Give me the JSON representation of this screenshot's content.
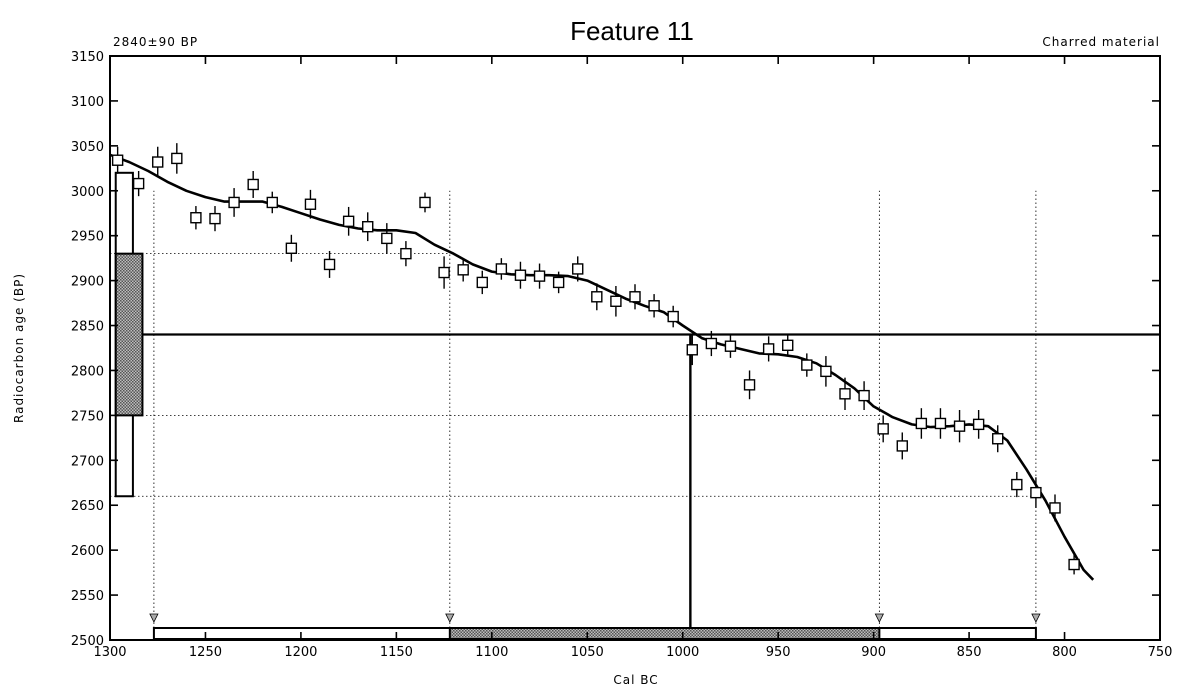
{
  "chart_data": {
    "type": "scatter",
    "title": "Feature 11",
    "sample_label": "2840±90 BP",
    "material_label": "Charred material",
    "xlabel": "Cal BC",
    "ylabel": "Radiocarbon age (BP)",
    "x_reversed": true,
    "xlim": [
      1300,
      750
    ],
    "ylim": [
      2500,
      3150
    ],
    "x_ticks": [
      "1300",
      "1250",
      "1200",
      "1150",
      "1100",
      "1050",
      "1000",
      "950",
      "900",
      "850",
      "800",
      "750"
    ],
    "y_ticks": [
      "2500",
      "2550",
      "2600",
      "2650",
      "2700",
      "2750",
      "2800",
      "2850",
      "2900",
      "2950",
      "3000",
      "3050",
      "3100",
      "3150"
    ],
    "sample_age_bp": 2840,
    "sample_error_bp": 90,
    "one_sigma_age_range_bp": [
      2750,
      2930
    ],
    "two_sigma_age_range_bp": [
      2660,
      3020
    ],
    "calibrated_intercept_bc": 996,
    "one_sigma_cal_range_bc": [
      1122,
      897
    ],
    "two_sigma_cal_range_bc": [
      1277,
      815
    ],
    "series": [
      {
        "name": "calibration curve",
        "style": "line",
        "points": [
          [
            1300,
            3040
          ],
          [
            1290,
            3032
          ],
          [
            1280,
            3022
          ],
          [
            1270,
            3010
          ],
          [
            1260,
            3000
          ],
          [
            1250,
            2993
          ],
          [
            1240,
            2988
          ],
          [
            1230,
            2988
          ],
          [
            1220,
            2988
          ],
          [
            1210,
            2982
          ],
          [
            1200,
            2975
          ],
          [
            1190,
            2968
          ],
          [
            1180,
            2962
          ],
          [
            1170,
            2958
          ],
          [
            1160,
            2956
          ],
          [
            1150,
            2956
          ],
          [
            1140,
            2953
          ],
          [
            1130,
            2940
          ],
          [
            1120,
            2930
          ],
          [
            1110,
            2918
          ],
          [
            1100,
            2910
          ],
          [
            1090,
            2907
          ],
          [
            1080,
            2906
          ],
          [
            1070,
            2906
          ],
          [
            1060,
            2905
          ],
          [
            1050,
            2900
          ],
          [
            1040,
            2890
          ],
          [
            1030,
            2880
          ],
          [
            1020,
            2872
          ],
          [
            1010,
            2865
          ],
          [
            1000,
            2850
          ],
          [
            990,
            2836
          ],
          [
            980,
            2829
          ],
          [
            970,
            2824
          ],
          [
            960,
            2819
          ],
          [
            950,
            2818
          ],
          [
            940,
            2815
          ],
          [
            930,
            2808
          ],
          [
            920,
            2795
          ],
          [
            910,
            2780
          ],
          [
            900,
            2760
          ],
          [
            890,
            2748
          ],
          [
            880,
            2740
          ],
          [
            870,
            2737
          ],
          [
            860,
            2738
          ],
          [
            850,
            2740
          ],
          [
            840,
            2738
          ],
          [
            830,
            2722
          ],
          [
            820,
            2690
          ],
          [
            810,
            2655
          ],
          [
            800,
            2615
          ],
          [
            790,
            2578
          ],
          [
            785,
            2567
          ]
        ]
      },
      {
        "name": "dendro-dated samples",
        "style": "squares-with-error-bars",
        "points": [
          [
            1296,
            3034,
            15
          ],
          [
            1285,
            3008,
            14
          ],
          [
            1275,
            3032,
            17
          ],
          [
            1265,
            3036,
            17
          ],
          [
            1255,
            2970,
            13
          ],
          [
            1245,
            2969,
            14
          ],
          [
            1235,
            2987,
            16
          ],
          [
            1225,
            3007,
            15
          ],
          [
            1215,
            2987,
            12
          ],
          [
            1205,
            2936,
            15
          ],
          [
            1195,
            2985,
            16
          ],
          [
            1185,
            2918,
            15
          ],
          [
            1175,
            2966,
            16
          ],
          [
            1165,
            2960,
            16
          ],
          [
            1155,
            2947,
            17
          ],
          [
            1145,
            2930,
            14
          ],
          [
            1135,
            2987,
            11
          ],
          [
            1125,
            2909,
            18
          ],
          [
            1115,
            2912,
            13
          ],
          [
            1105,
            2898,
            13
          ],
          [
            1095,
            2913,
            12
          ],
          [
            1085,
            2906,
            15
          ],
          [
            1075,
            2905,
            14
          ],
          [
            1065,
            2898,
            12
          ],
          [
            1055,
            2913,
            14
          ],
          [
            1045,
            2882,
            15
          ],
          [
            1035,
            2877,
            17
          ],
          [
            1025,
            2882,
            14
          ],
          [
            1015,
            2872,
            13
          ],
          [
            1005,
            2860,
            12
          ],
          [
            995,
            2823,
            17
          ],
          [
            985,
            2830,
            14
          ],
          [
            975,
            2827,
            13
          ],
          [
            965,
            2784,
            16
          ],
          [
            955,
            2824,
            14
          ],
          [
            945,
            2828,
            12
          ],
          [
            935,
            2806,
            13
          ],
          [
            925,
            2799,
            17
          ],
          [
            915,
            2774,
            18
          ],
          [
            905,
            2772,
            16
          ],
          [
            895,
            2735,
            15
          ],
          [
            885,
            2716,
            15
          ],
          [
            875,
            2741,
            17
          ],
          [
            865,
            2741,
            17
          ],
          [
            855,
            2738,
            18
          ],
          [
            845,
            2740,
            16
          ],
          [
            835,
            2724,
            15
          ],
          [
            825,
            2673,
            14
          ],
          [
            815,
            2664,
            17
          ],
          [
            805,
            2647,
            15
          ],
          [
            795,
            2584,
            11
          ]
        ]
      }
    ],
    "grid": false,
    "colors": {
      "ink": "#000000",
      "hatch": "#8a8a8a"
    }
  }
}
